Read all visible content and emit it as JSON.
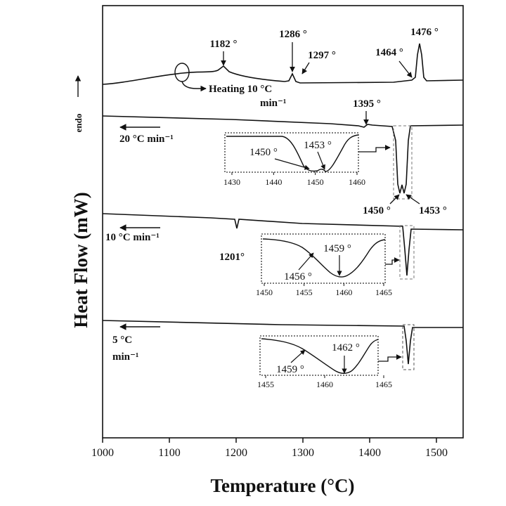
{
  "chart_data": {
    "type": "line",
    "xlabel": "Temperature (°C)",
    "ylabel": "Heat Flow (mW)",
    "endo_label": "endo",
    "xlim": [
      1000,
      1540
    ],
    "xticks": [
      1000,
      1100,
      1200,
      1300,
      1400,
      1500
    ],
    "xtick_labels": [
      "1000",
      "1100",
      "1200",
      "1300",
      "1400",
      "1500"
    ],
    "grid": false,
    "series": [
      {
        "label": "Heating 10 °C min⁻¹",
        "label_lines": [
          "Heating 10 °C",
          "min⁻¹"
        ],
        "peaks": [
          {
            "t": 1182,
            "label": "1182 °"
          },
          {
            "t": 1286,
            "label": "1286 °"
          },
          {
            "t": 1297,
            "label": "1297 °"
          },
          {
            "t": 1464,
            "label": "1464 °"
          },
          {
            "t": 1476,
            "label": "1476 °"
          }
        ]
      },
      {
        "label": "20 °C min⁻¹",
        "label_lines": [
          "20 °C min⁻¹"
        ],
        "peaks": [
          {
            "t": 1395,
            "label": "1395 °"
          },
          {
            "t": 1450,
            "label": "1450 °"
          },
          {
            "t": 1453,
            "label": "1453 °"
          }
        ],
        "inset": {
          "xticks": [
            "1430",
            "1440",
            "1450",
            "1460"
          ],
          "peaks": [
            {
              "t": 1450,
              "label": "1450 °"
            },
            {
              "t": 1453,
              "label": "1453 °"
            }
          ]
        }
      },
      {
        "label": "10 °C min⁻¹",
        "label_lines": [
          "10 °C min⁻¹"
        ],
        "peaks": [
          {
            "t": 1201,
            "label": "1201°"
          }
        ],
        "inset": {
          "xticks": [
            "1450",
            "1455",
            "1460",
            "1465"
          ],
          "peaks": [
            {
              "t": 1456,
              "label": "1456 °"
            },
            {
              "t": 1459,
              "label": "1459 °"
            }
          ]
        }
      },
      {
        "label": "5 °C min⁻¹",
        "label_lines": [
          "5 °C",
          "min⁻¹"
        ],
        "peaks": [],
        "inset": {
          "xticks": [
            "1455",
            "1460",
            "1465"
          ],
          "peaks": [
            {
              "t": 1459,
              "label": "1459 °"
            },
            {
              "t": 1462,
              "label": "1462 °"
            }
          ]
        }
      }
    ]
  }
}
